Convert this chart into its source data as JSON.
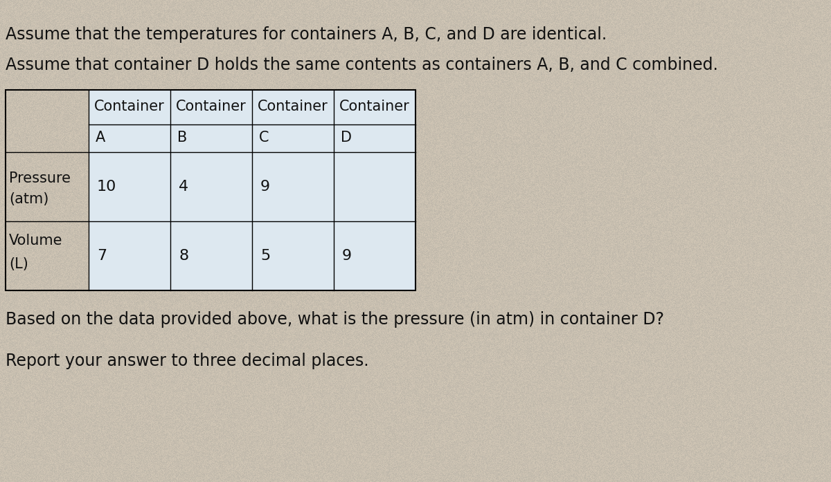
{
  "line1": "Assume that the temperatures for containers A, B, C, and D are identical.",
  "line2": "Assume that container D holds the same contents as containers A, B, and C combined.",
  "col_headers_row1": [
    "Container",
    "Container",
    "Container",
    "Container"
  ],
  "col_headers_row2": [
    "A",
    "B",
    "C",
    "D"
  ],
  "row_labels_line1": [
    "Pressure",
    "Volume"
  ],
  "row_labels_line2": [
    "(atm)",
    "(L)"
  ],
  "pressure_values": [
    "10",
    "4",
    "9",
    ""
  ],
  "volume_values": [
    "7",
    "8",
    "5",
    "9"
  ],
  "question": "Based on the data provided above, what is the pressure (in atm) in container D?",
  "instruction": "Report your answer to three decimal places.",
  "bg_color": "#c8bfb0",
  "cell_color": "#dde8f0",
  "text_color": "#111111",
  "font_size_text": 17,
  "font_size_table": 15,
  "table_cell_color": "#cdd8e0"
}
